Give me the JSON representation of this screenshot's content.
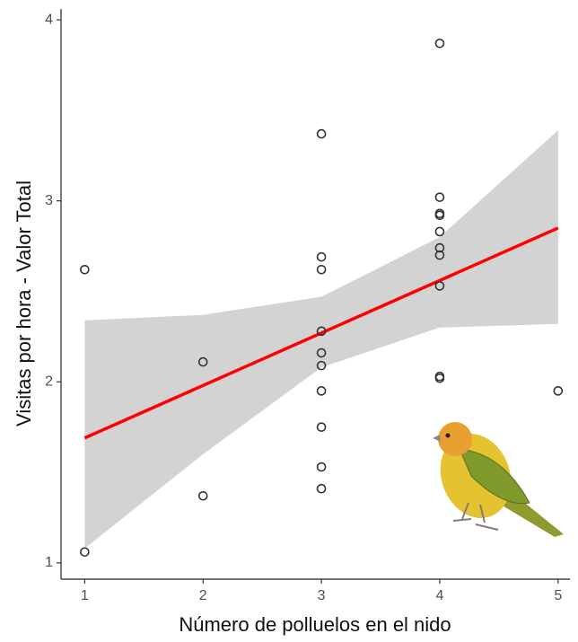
{
  "chart_data": {
    "type": "scatter",
    "xlabel": "Número de polluelos en el nido",
    "ylabel": "Visitas por hora - Valor Total",
    "x": [
      1,
      1,
      2,
      2,
      3,
      3,
      3,
      3,
      3,
      3,
      3,
      3,
      3,
      3,
      4,
      4,
      4,
      4,
      4,
      4,
      4,
      4,
      4,
      4,
      5
    ],
    "y": [
      2.62,
      1.06,
      2.11,
      1.37,
      3.37,
      2.69,
      2.62,
      2.28,
      2.16,
      2.09,
      1.95,
      1.75,
      1.53,
      1.41,
      3.87,
      3.02,
      2.93,
      2.92,
      2.83,
      2.74,
      2.7,
      2.53,
      2.03,
      2.02,
      1.95
    ],
    "point_color": "#333333",
    "fit": {
      "x": [
        1,
        5
      ],
      "y": [
        1.69,
        2.85
      ],
      "color": "#ff0000"
    },
    "band": {
      "x": [
        1,
        2,
        3,
        4,
        5
      ],
      "upper": [
        2.34,
        2.37,
        2.47,
        2.8,
        3.39
      ],
      "lower": [
        1.08,
        1.6,
        2.08,
        2.3,
        2.32
      ],
      "color": "#d3d3d3"
    },
    "xlim": [
      0.8,
      5.1
    ],
    "ylim": [
      0.91,
      4.06
    ],
    "xticks": [
      1,
      2,
      3,
      4,
      5
    ],
    "yticks": [
      1,
      2,
      3,
      4
    ]
  }
}
